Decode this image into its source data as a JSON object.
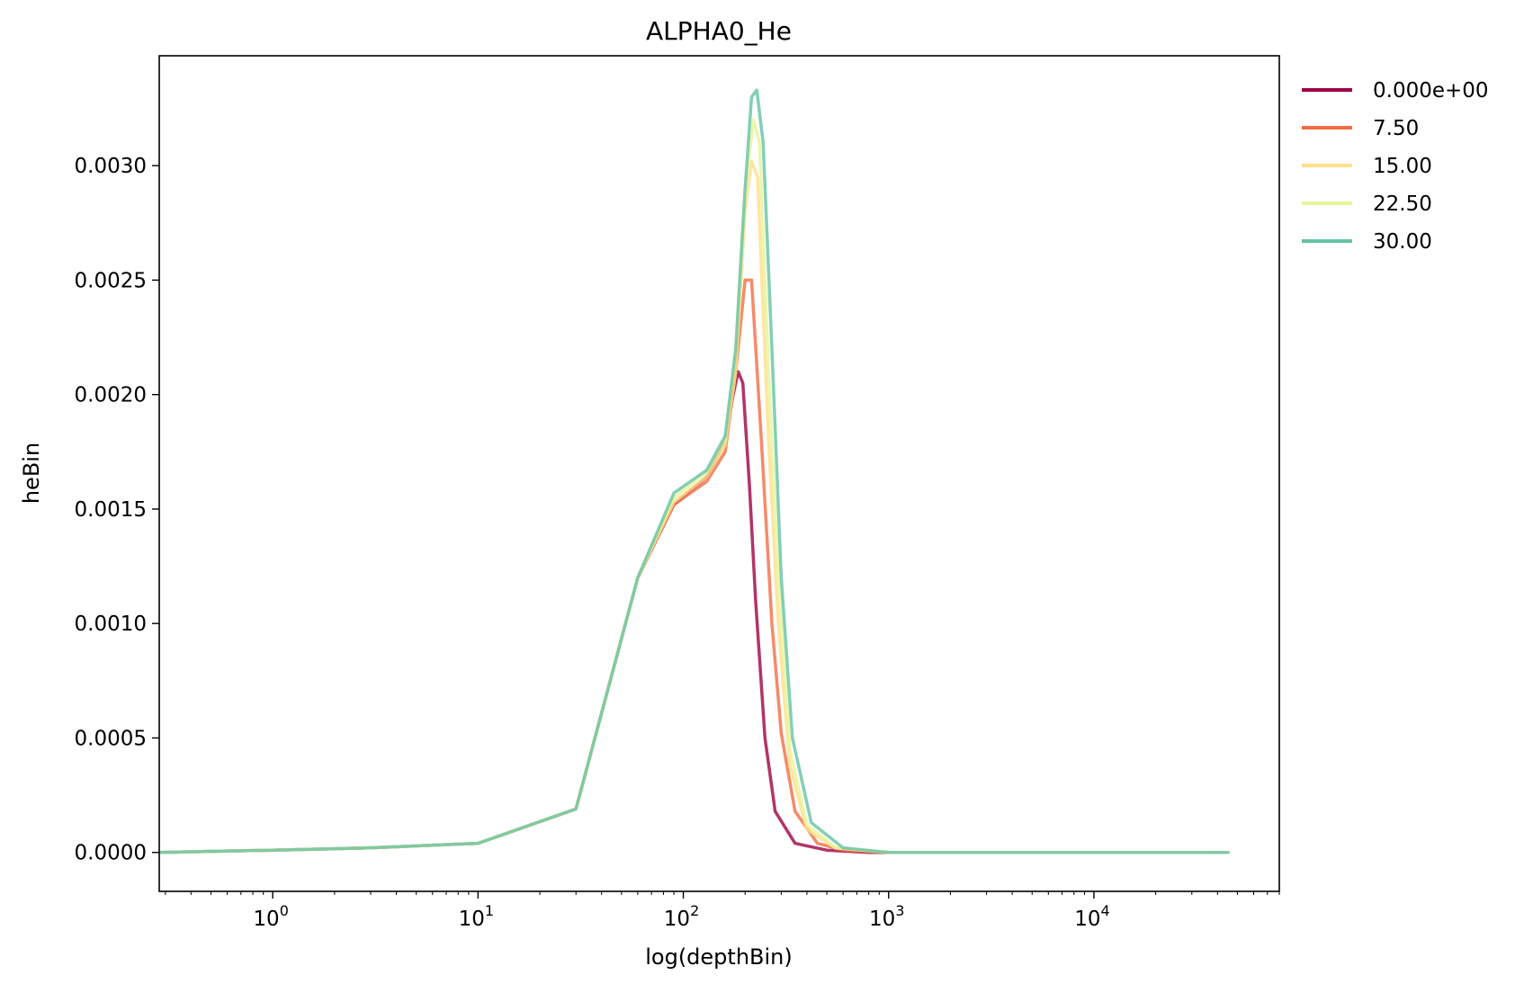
{
  "chart_data": {
    "type": "line",
    "title": "ALPHA0_He",
    "xlabel": "log(depthBin)",
    "ylabel": "heBin",
    "xscale": "log",
    "xlim": [
      0.28,
      80000
    ],
    "ylim": [
      -0.00017,
      0.00348
    ],
    "grid": false,
    "legend_position": "outside-right-top",
    "xticks": [
      {
        "value": 1,
        "base": "10",
        "exp": "0"
      },
      {
        "value": 10,
        "base": "10",
        "exp": "1"
      },
      {
        "value": 100,
        "base": "10",
        "exp": "2"
      },
      {
        "value": 1000,
        "base": "10",
        "exp": "3"
      },
      {
        "value": 10000,
        "base": "10",
        "exp": "4"
      }
    ],
    "yticks": [
      {
        "value": 0.0,
        "label": "0.0000"
      },
      {
        "value": 0.0005,
        "label": "0.0005"
      },
      {
        "value": 0.001,
        "label": "0.0010"
      },
      {
        "value": 0.0015,
        "label": "0.0015"
      },
      {
        "value": 0.002,
        "label": "0.0020"
      },
      {
        "value": 0.0025,
        "label": "0.0025"
      },
      {
        "value": 0.003,
        "label": "0.0030"
      }
    ],
    "series": [
      {
        "name": "0.000e+00",
        "color": "#9e0142",
        "x": [
          0.28,
          1,
          3,
          10,
          30,
          60,
          90,
          130,
          160,
          175,
          185,
          195,
          210,
          225,
          250,
          280,
          350,
          500,
          800,
          1500,
          45000
        ],
        "y": [
          0.0,
          1e-05,
          2e-05,
          4e-05,
          0.00019,
          0.0012,
          0.00152,
          0.00164,
          0.0018,
          0.002,
          0.0021,
          0.00205,
          0.0016,
          0.0011,
          0.0005,
          0.00018,
          4e-05,
          1e-05,
          0.0,
          0.0,
          0.0
        ]
      },
      {
        "name": "7.50",
        "color": "#f46d43",
        "x": [
          0.28,
          1,
          3,
          10,
          30,
          60,
          90,
          130,
          160,
          180,
          200,
          215,
          240,
          270,
          300,
          350,
          450,
          600,
          1000,
          2000,
          45000
        ],
        "y": [
          0.0,
          1e-05,
          2e-05,
          4e-05,
          0.00019,
          0.0012,
          0.00152,
          0.00162,
          0.00175,
          0.0021,
          0.0025,
          0.0025,
          0.0018,
          0.001,
          0.00052,
          0.00018,
          4e-05,
          1e-05,
          0.0,
          0.0,
          0.0
        ]
      },
      {
        "name": "15.00",
        "color": "#fee08b",
        "x": [
          0.28,
          1,
          3,
          10,
          30,
          60,
          90,
          130,
          160,
          180,
          200,
          215,
          230,
          260,
          290,
          330,
          400,
          550,
          1000,
          2000,
          45000
        ],
        "y": [
          0.0,
          1e-05,
          2e-05,
          4e-05,
          0.00019,
          0.0012,
          0.00153,
          0.00164,
          0.00178,
          0.0021,
          0.0028,
          0.00302,
          0.00295,
          0.0018,
          0.001,
          0.00038,
          0.0001,
          2e-05,
          0.0,
          0.0,
          0.0
        ]
      },
      {
        "name": "22.50",
        "color": "#e6f598",
        "x": [
          0.28,
          1,
          3,
          10,
          30,
          60,
          90,
          130,
          160,
          180,
          200,
          220,
          235,
          260,
          290,
          330,
          400,
          550,
          1000,
          2000,
          45000
        ],
        "y": [
          0.0,
          1e-05,
          2e-05,
          4e-05,
          0.00019,
          0.0012,
          0.00155,
          0.00166,
          0.0018,
          0.0022,
          0.0029,
          0.0032,
          0.0031,
          0.0021,
          0.0012,
          0.00045,
          0.00012,
          2e-05,
          0.0,
          0.0,
          0.0
        ]
      },
      {
        "name": "30.00",
        "color": "#66c2a5",
        "x": [
          0.28,
          1,
          3,
          10,
          30,
          60,
          90,
          130,
          160,
          180,
          200,
          215,
          228,
          245,
          270,
          300,
          340,
          420,
          600,
          1000,
          2000,
          45000
        ],
        "y": [
          0.0,
          1e-05,
          2e-05,
          4e-05,
          0.00019,
          0.0012,
          0.00157,
          0.00167,
          0.00182,
          0.0022,
          0.0029,
          0.0033,
          0.00333,
          0.0031,
          0.0022,
          0.0012,
          0.0005,
          0.00013,
          2e-05,
          0.0,
          0.0,
          0.0
        ]
      }
    ]
  }
}
